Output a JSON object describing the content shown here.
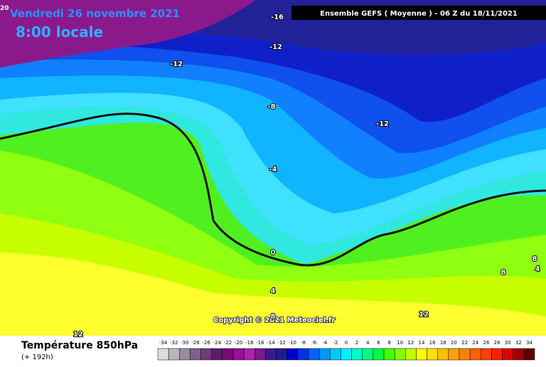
{
  "header": {
    "corner_label": "20",
    "date": "Vendredi 26 novembre 2021",
    "time": "8:00 locale",
    "model": "Ensemble GEFS  ( Moyenne )  -  06 Z du 18/11/2021"
  },
  "map": {
    "contour_labels": [
      "-16",
      "-12",
      "-12",
      "-8",
      "-12",
      "-4",
      "0",
      "4",
      "8",
      "12",
      "12",
      "8",
      "4",
      "8"
    ],
    "copyright": "Copyright © 2021 Meteociel.fr"
  },
  "legend": {
    "title": "Température 850hPa",
    "subtitle": "(+ 192h)",
    "scale": [
      {
        "value": -34,
        "color": "#dcdcdc"
      },
      {
        "value": -32,
        "color": "#b8b8b8"
      },
      {
        "value": -30,
        "color": "#9c8aa0"
      },
      {
        "value": -28,
        "color": "#80608a"
      },
      {
        "value": -26,
        "color": "#6e3c78"
      },
      {
        "value": -24,
        "color": "#5c1c6c"
      },
      {
        "value": -22,
        "color": "#7a0a7a"
      },
      {
        "value": -20,
        "color": "#96109a"
      },
      {
        "value": -18,
        "color": "#b020b0"
      },
      {
        "value": -16,
        "color": "#7a1a8c"
      },
      {
        "value": -14,
        "color": "#3c1a8c"
      },
      {
        "value": -12,
        "color": "#1c1c9c"
      },
      {
        "value": -10,
        "color": "#0000c8"
      },
      {
        "value": -8,
        "color": "#0030e8"
      },
      {
        "value": -6,
        "color": "#0064ff"
      },
      {
        "value": -4,
        "color": "#0096ff"
      },
      {
        "value": -2,
        "color": "#00c8ff"
      },
      {
        "value": 0,
        "color": "#00f0ff"
      },
      {
        "value": 2,
        "color": "#00ffc8"
      },
      {
        "value": 4,
        "color": "#00ff80"
      },
      {
        "value": 6,
        "color": "#00ff40"
      },
      {
        "value": 8,
        "color": "#40ff00"
      },
      {
        "value": 10,
        "color": "#80ff00"
      },
      {
        "value": 12,
        "color": "#c0ff00"
      },
      {
        "value": 14,
        "color": "#ffff00"
      },
      {
        "value": 16,
        "color": "#ffe000"
      },
      {
        "value": 18,
        "color": "#ffc000"
      },
      {
        "value": 20,
        "color": "#ffa000"
      },
      {
        "value": 22,
        "color": "#ff8000"
      },
      {
        "value": 24,
        "color": "#ff6000"
      },
      {
        "value": 26,
        "color": "#ff4000"
      },
      {
        "value": 28,
        "color": "#ff2000"
      },
      {
        "value": 30,
        "color": "#e00000"
      },
      {
        "value": 32,
        "color": "#a00000"
      },
      {
        "value": 34,
        "color": "#600000"
      }
    ]
  }
}
